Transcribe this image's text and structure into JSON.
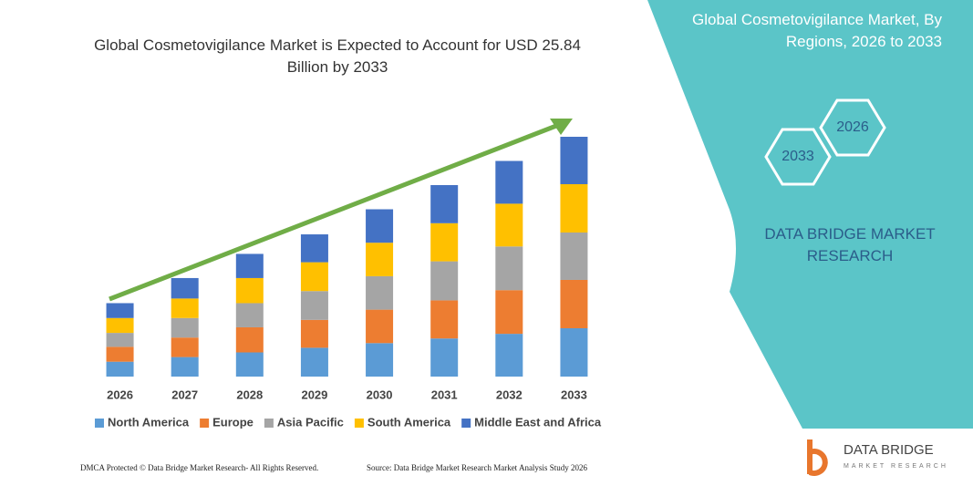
{
  "chart_data": {
    "type": "bar",
    "stacked": true,
    "title": "Global Cosmetovigilance Market is Expected to Account for USD 25.84 Billion by 2033",
    "categories": [
      "2026",
      "2027",
      "2028",
      "2029",
      "2030",
      "2031",
      "2032",
      "2033"
    ],
    "series": [
      {
        "name": "North America",
        "color": "#5b9bd5",
        "values": [
          1.6,
          2.1,
          2.6,
          3.1,
          3.6,
          4.1,
          4.6,
          5.2
        ]
      },
      {
        "name": "Europe",
        "color": "#ed7d31",
        "values": [
          1.6,
          2.1,
          2.7,
          3.0,
          3.6,
          4.1,
          4.7,
          5.2
        ]
      },
      {
        "name": "Asia Pacific",
        "color": "#a5a5a5",
        "values": [
          1.5,
          2.1,
          2.6,
          3.1,
          3.6,
          4.2,
          4.7,
          5.1
        ]
      },
      {
        "name": "South America",
        "color": "#ffc000",
        "values": [
          1.6,
          2.1,
          2.7,
          3.1,
          3.6,
          4.1,
          4.6,
          5.2
        ]
      },
      {
        "name": "Middle East and Africa",
        "color": "#4472c4",
        "values": [
          1.6,
          2.2,
          2.6,
          3.0,
          3.6,
          4.1,
          4.6,
          5.1
        ]
      }
    ]
  },
  "panel": {
    "title": "Global Cosmetovigilance Market, By Regions, 2026 to 2033",
    "hexagons": [
      "2026",
      "2033"
    ],
    "brand": "DATA BRIDGE MARKET RESEARCH"
  },
  "logo": {
    "name": "DATA BRIDGE",
    "tagline": "MARKET RESEARCH"
  },
  "footer": {
    "left": "DMCA Protected © Data Bridge Market Research- All Rights Reserved.",
    "right": "Source: Data Bridge Market Research  Market Analysis Study 2026"
  }
}
